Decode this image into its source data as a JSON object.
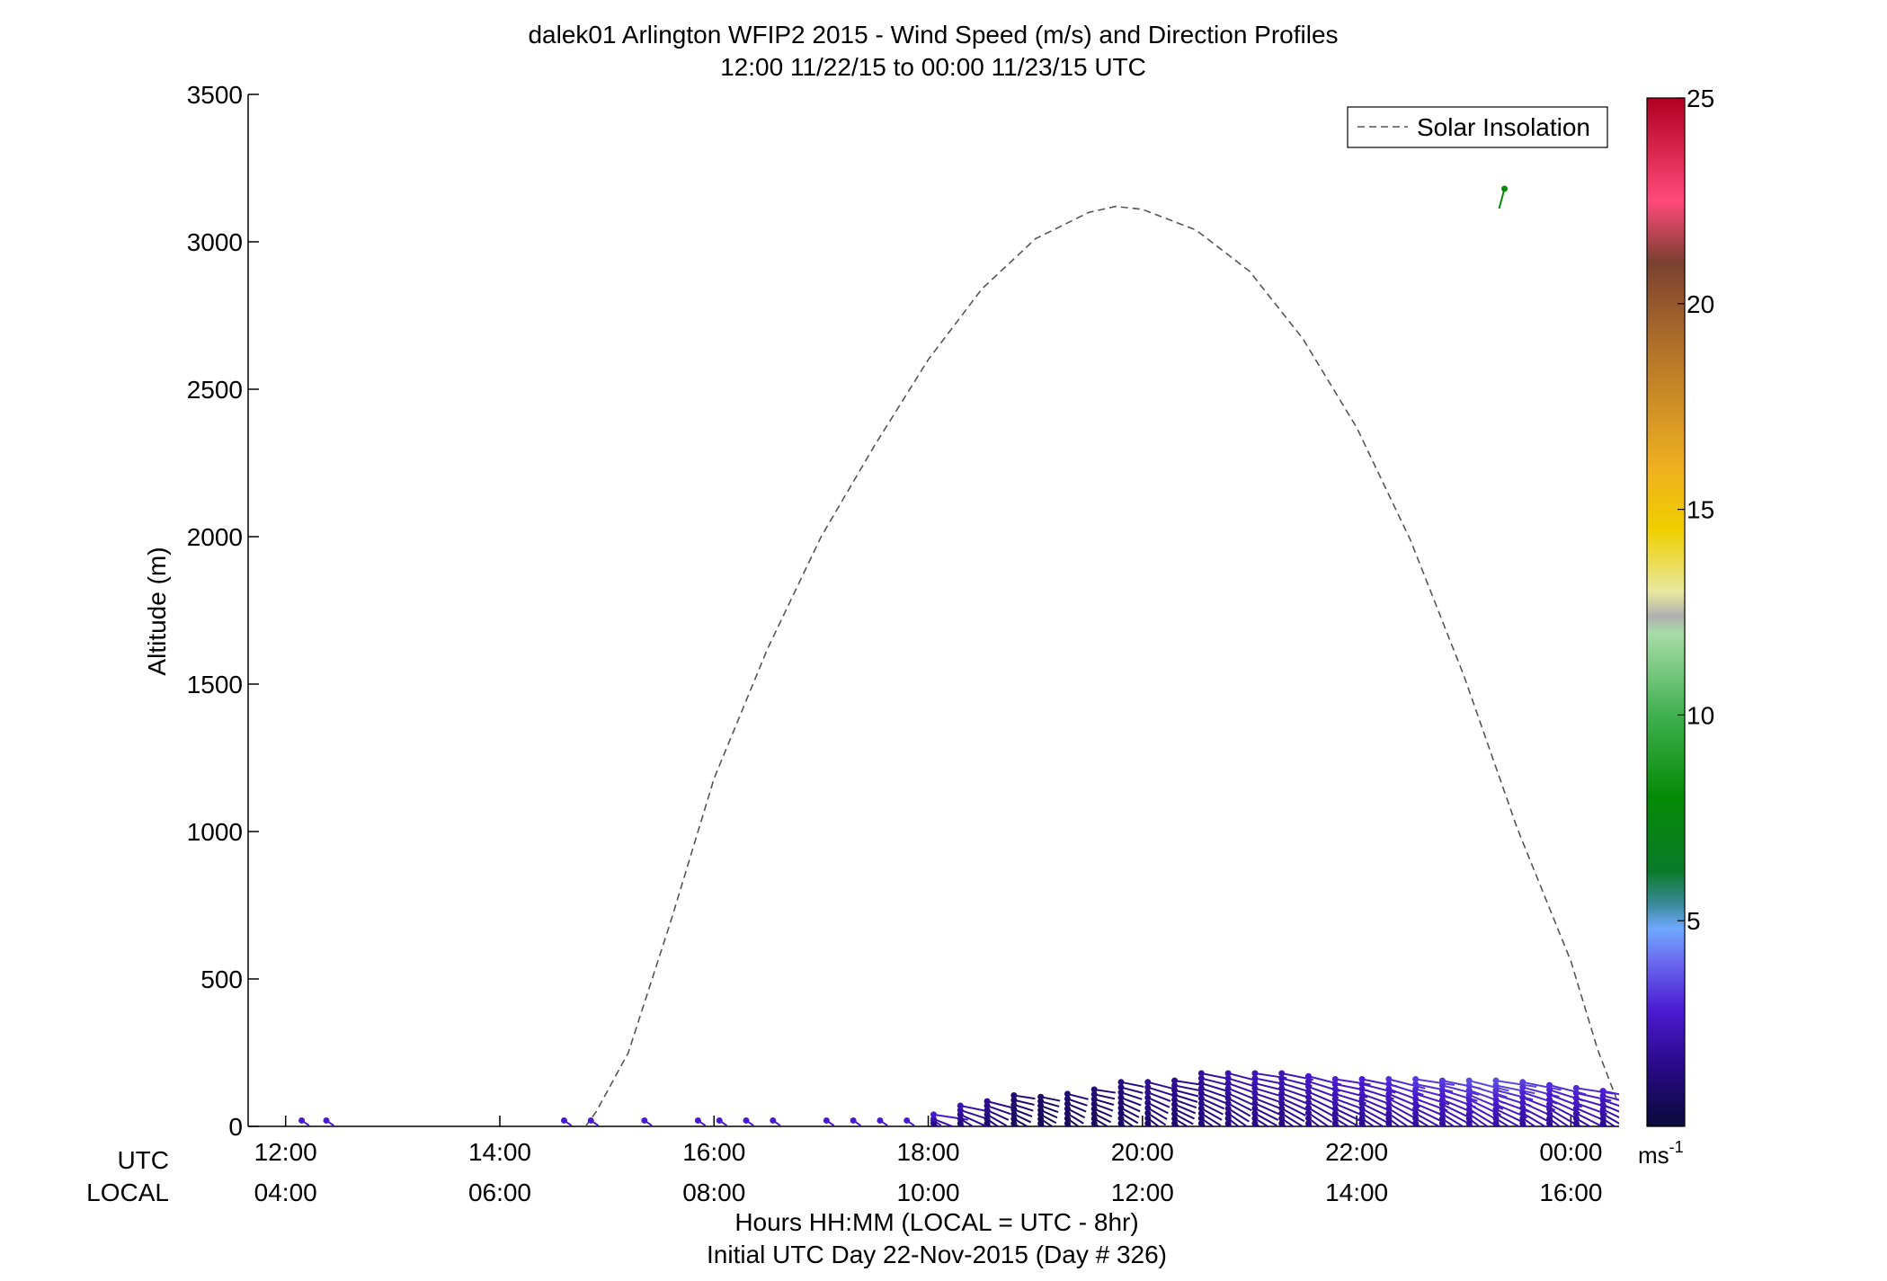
{
  "chart_data": {
    "type": "wind-profile",
    "title": "dalek01 Arlington WFIP2 2015 - Wind Speed (m/s) and Direction Profiles",
    "subtitle": "12:00 11/22/15 to 00:00 11/23/15  UTC",
    "ylabel": "Altitude (m)",
    "xlabel": "Hours HH:MM  (LOCAL = UTC - 8hr)",
    "xlabel2": "Initial UTC Day 22-Nov-2015 (Day # 326)",
    "utc_row_label": "UTC",
    "local_row_label": "LOCAL",
    "ylim": [
      0,
      3500
    ],
    "yticks": [
      0,
      500,
      1000,
      1500,
      2000,
      2500,
      3000,
      3500
    ],
    "xlim_hours": [
      11.65,
      24.45
    ],
    "xtick_hours": [
      12,
      14,
      16,
      18,
      20,
      22,
      24
    ],
    "utc_tick_labels": [
      "12:00",
      "14:00",
      "16:00",
      "18:00",
      "20:00",
      "22:00",
      "00:00"
    ],
    "local_tick_labels": [
      "04:00",
      "06:00",
      "08:00",
      "10:00",
      "12:00",
      "14:00",
      "16:00"
    ],
    "legend": {
      "label": "Solar Insolation",
      "placement": "top-right"
    },
    "colorbar": {
      "min": 0,
      "max": 25,
      "ticks": [
        5,
        10,
        15,
        20,
        25
      ],
      "unit_label": "ms",
      "unit_exp": "-1",
      "stops": [
        {
          "v": 0,
          "c": "#0a0a3a"
        },
        {
          "v": 1.5,
          "c": "#2a0a8a"
        },
        {
          "v": 2.8,
          "c": "#4a1ad0"
        },
        {
          "v": 4.0,
          "c": "#6a6af0"
        },
        {
          "v": 4.8,
          "c": "#70a8ff"
        },
        {
          "v": 5.4,
          "c": "#3a8a9a"
        },
        {
          "v": 6.2,
          "c": "#0a7a2a"
        },
        {
          "v": 8.0,
          "c": "#058a05"
        },
        {
          "v": 10.0,
          "c": "#40b050"
        },
        {
          "v": 12.0,
          "c": "#a8dca8"
        },
        {
          "v": 12.4,
          "c": "#b0b0b0"
        },
        {
          "v": 13.0,
          "c": "#e8e8a0"
        },
        {
          "v": 14.5,
          "c": "#f0d000"
        },
        {
          "v": 16.0,
          "c": "#f0b020"
        },
        {
          "v": 19.0,
          "c": "#b0702a"
        },
        {
          "v": 21.0,
          "c": "#7a4030"
        },
        {
          "v": 22.5,
          "c": "#ff4a7a"
        },
        {
          "v": 25.0,
          "c": "#b00020"
        }
      ]
    },
    "solar_insolation_curve": [
      [
        14.8,
        0
      ],
      [
        14.9,
        50
      ],
      [
        15.2,
        250
      ],
      [
        15.6,
        700
      ],
      [
        16.0,
        1180
      ],
      [
        16.5,
        1620
      ],
      [
        17.0,
        2000
      ],
      [
        17.5,
        2310
      ],
      [
        18.0,
        2600
      ],
      [
        18.5,
        2840
      ],
      [
        19.0,
        3010
      ],
      [
        19.5,
        3100
      ],
      [
        19.75,
        3120
      ],
      [
        20.0,
        3110
      ],
      [
        20.5,
        3040
      ],
      [
        21.0,
        2900
      ],
      [
        21.5,
        2670
      ],
      [
        22.0,
        2370
      ],
      [
        22.5,
        1990
      ],
      [
        23.0,
        1530
      ],
      [
        23.5,
        1010
      ],
      [
        24.0,
        560
      ],
      [
        24.25,
        260
      ],
      [
        24.45,
        70
      ]
    ],
    "wind_barbs_summary": "Low-level wind profiles (mostly below ~180 m) at 0-5 m/s; single isolated reading near 3180 m at ~23.4 UTC in green",
    "isolated_point": {
      "hour": 23.38,
      "altitude": 3180,
      "speed": 8
    },
    "sparse_surface_obs": [
      12.15,
      12.38,
      14.6,
      14.85,
      15.35,
      15.85,
      16.05,
      16.3,
      16.55,
      17.05,
      17.3,
      17.55,
      17.8,
      18.05
    ],
    "profile_columns": [
      {
        "hour": 18.05,
        "top": 40,
        "speed": 2.5
      },
      {
        "hour": 18.3,
        "top": 70,
        "speed": 2.0
      },
      {
        "hour": 18.55,
        "top": 85,
        "speed": 1.5
      },
      {
        "hour": 18.8,
        "top": 105,
        "speed": 1.0
      },
      {
        "hour": 19.05,
        "top": 100,
        "speed": 0.8
      },
      {
        "hour": 19.3,
        "top": 110,
        "speed": 1.0
      },
      {
        "hour": 19.55,
        "top": 125,
        "speed": 1.0
      },
      {
        "hour": 19.8,
        "top": 150,
        "speed": 1.2
      },
      {
        "hour": 20.05,
        "top": 150,
        "speed": 1.5
      },
      {
        "hour": 20.3,
        "top": 155,
        "speed": 1.5
      },
      {
        "hour": 20.55,
        "top": 180,
        "speed": 1.8
      },
      {
        "hour": 20.8,
        "top": 180,
        "speed": 2.0
      },
      {
        "hour": 21.05,
        "top": 180,
        "speed": 2.2
      },
      {
        "hour": 21.3,
        "top": 180,
        "speed": 2.2
      },
      {
        "hour": 21.55,
        "top": 170,
        "speed": 2.4
      },
      {
        "hour": 21.8,
        "top": 160,
        "speed": 2.6
      },
      {
        "hour": 22.05,
        "top": 160,
        "speed": 2.6
      },
      {
        "hour": 22.3,
        "top": 160,
        "speed": 2.8
      },
      {
        "hour": 22.55,
        "top": 160,
        "speed": 3.0
      },
      {
        "hour": 22.8,
        "top": 155,
        "speed": 3.0
      },
      {
        "hour": 23.05,
        "top": 155,
        "speed": 3.2
      },
      {
        "hour": 23.3,
        "top": 155,
        "speed": 3.2
      },
      {
        "hour": 23.55,
        "top": 150,
        "speed": 3.0
      },
      {
        "hour": 23.8,
        "top": 140,
        "speed": 2.8
      },
      {
        "hour": 24.05,
        "top": 130,
        "speed": 2.8
      },
      {
        "hour": 24.3,
        "top": 120,
        "speed": 2.6
      }
    ]
  }
}
